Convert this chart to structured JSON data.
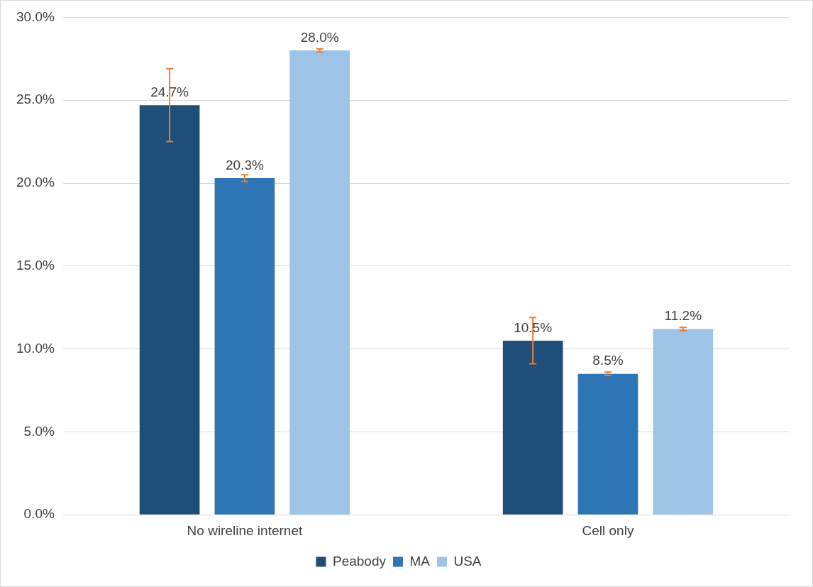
{
  "chart_data": {
    "type": "bar",
    "categories": [
      "No wireline internet",
      "Cell only"
    ],
    "series": [
      {
        "name": "Peabody",
        "color": "#1f4e79",
        "values": [
          24.7,
          10.5
        ],
        "errors": [
          2.2,
          1.4
        ],
        "value_labels": [
          "24.7%",
          "10.5%"
        ]
      },
      {
        "name": "MA",
        "color": "#2e75b6",
        "values": [
          20.3,
          8.5
        ],
        "errors": [
          0.2,
          0.1
        ],
        "value_labels": [
          "20.3%",
          "8.5%"
        ]
      },
      {
        "name": "USA",
        "color": "#9dc3e6",
        "values": [
          28.0,
          11.2
        ],
        "errors": [
          0.1,
          0.1
        ],
        "value_labels": [
          "28.0%",
          "11.2%"
        ]
      }
    ],
    "ylim": [
      0,
      30
    ],
    "yticks": [
      {
        "value": 0,
        "label": "0.0%"
      },
      {
        "value": 5,
        "label": "5.0%"
      },
      {
        "value": 10,
        "label": "10.0%"
      },
      {
        "value": 15,
        "label": "15.0%"
      },
      {
        "value": 20,
        "label": "20.0%"
      },
      {
        "value": 25,
        "label": "25.0%"
      },
      {
        "value": 30,
        "label": "30.0%"
      }
    ],
    "grid": "y",
    "legend": "bottom"
  }
}
